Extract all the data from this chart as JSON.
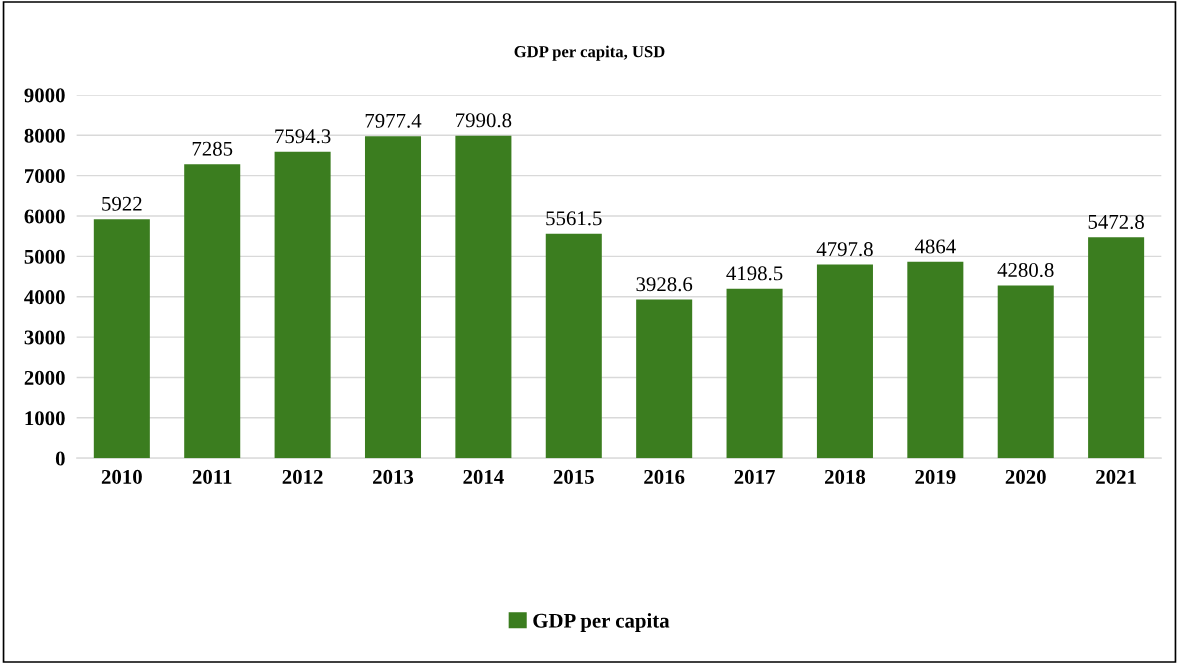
{
  "chart_data": {
    "type": "bar",
    "title": "GDP per capita, USD",
    "categories": [
      "2010",
      "2011",
      "2012",
      "2013",
      "2014",
      "2015",
      "2016",
      "2017",
      "2018",
      "2019",
      "2020",
      "2021"
    ],
    "series": [
      {
        "name": "GDP per capita",
        "color": "#3b7d1f",
        "values": [
          5922,
          7285,
          7594.3,
          7977.4,
          7990.8,
          5561.5,
          3928.6,
          4198.5,
          4797.8,
          4864,
          4280.8,
          5472.8
        ]
      }
    ],
    "ylim": [
      0,
      9000
    ],
    "yticks": [
      0,
      1000,
      2000,
      3000,
      4000,
      5000,
      6000,
      7000,
      8000,
      9000
    ],
    "grid": "y",
    "legend": "bottom",
    "data_labels": true
  }
}
